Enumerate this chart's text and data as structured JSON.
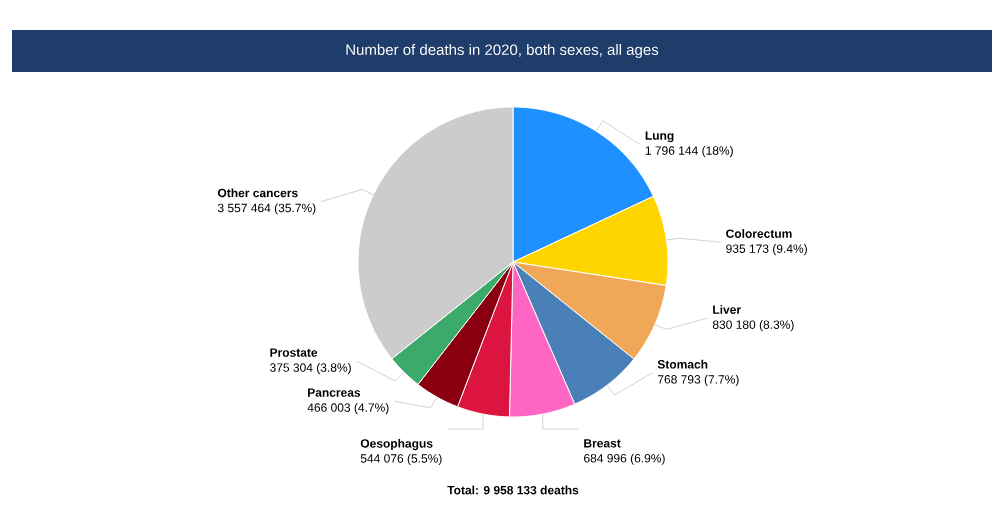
{
  "chart_data": {
    "type": "pie",
    "title": "Number of deaths in 2020, both sexes, all ages",
    "categories": [
      "Lung",
      "Colorectum",
      "Liver",
      "Stomach",
      "Breast",
      "Oesophagus",
      "Pancreas",
      "Prostate",
      "Other cancers"
    ],
    "values": [
      1796144,
      935173,
      830180,
      768793,
      684996,
      544076,
      466003,
      375304,
      3557464
    ],
    "value_labels": [
      "1 796 144 (18%)",
      "935 173 (9.4%)",
      "830 180 (8.3%)",
      "768 793 (7.7%)",
      "684 996 (6.9%)",
      "544 076 (5.5%)",
      "466 003 (4.7%)",
      "375 304 (3.8%)",
      "3 557 464 (35.7%)"
    ],
    "colors": [
      "#1e90ff",
      "#ffd500",
      "#f0a858",
      "#4a80b8",
      "#ff66c4",
      "#dc1440",
      "#8b0010",
      "#3caa6a",
      "#cccccc"
    ],
    "annotations": [
      "Total: 9 958 133 deaths"
    ]
  }
}
